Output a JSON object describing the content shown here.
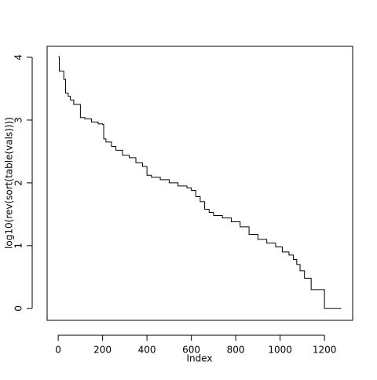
{
  "chart_data": {
    "type": "step",
    "xlabel": "Index",
    "ylabel": "log10(rev(sort(table(vals))))",
    "x": [
      1,
      5,
      25,
      33,
      45,
      55,
      70,
      100,
      120,
      150,
      180,
      200,
      205,
      215,
      240,
      260,
      290,
      320,
      350,
      380,
      400,
      420,
      460,
      500,
      540,
      580,
      600,
      620,
      640,
      660,
      680,
      700,
      740,
      780,
      820,
      860,
      900,
      940,
      980,
      1010,
      1040,
      1060,
      1075,
      1090,
      1110,
      1140,
      1200,
      1276
    ],
    "values": [
      4.01,
      3.78,
      3.65,
      3.43,
      3.38,
      3.32,
      3.25,
      3.04,
      3.02,
      2.97,
      2.94,
      2.93,
      2.7,
      2.65,
      2.58,
      2.52,
      2.44,
      2.4,
      2.32,
      2.26,
      2.12,
      2.09,
      2.05,
      2.0,
      1.95,
      1.92,
      1.88,
      1.78,
      1.7,
      1.58,
      1.53,
      1.48,
      1.44,
      1.38,
      1.3,
      1.18,
      1.1,
      1.04,
      0.98,
      0.9,
      0.85,
      0.78,
      0.7,
      0.6,
      0.48,
      0.3,
      0.0,
      0.0
    ],
    "color": "#000000",
    "xlim": [
      -50,
      1327
    ],
    "ylim": [
      -0.19,
      4.175
    ],
    "xticks": [
      0,
      200,
      400,
      600,
      800,
      1000,
      1200
    ],
    "yticks": [
      0,
      1,
      2,
      3,
      4
    ]
  }
}
